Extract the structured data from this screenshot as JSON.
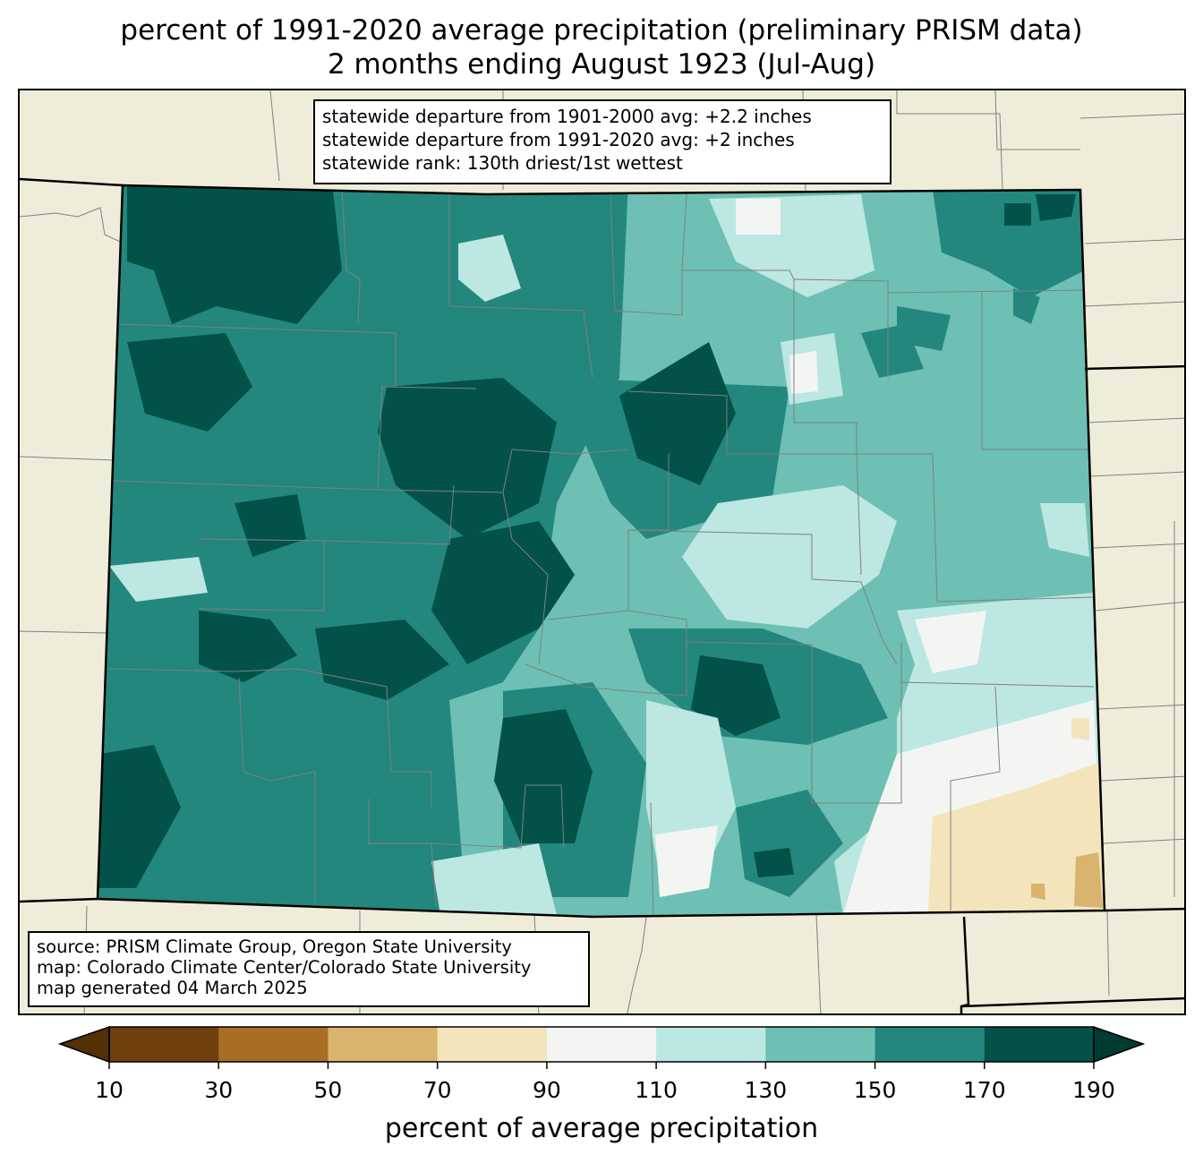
{
  "title": {
    "line1": "percent of 1991-2020 average precipitation (preliminary PRISM data)",
    "line2": "2 months ending August 1923 (Jul-Aug)"
  },
  "stats": {
    "line1": "statewide departure from 1901-2000 avg: +2.2 inches",
    "line2": "statewide departure from 1991-2020 avg: +2 inches",
    "line3": "statewide rank: 130th driest/1st wettest"
  },
  "source": {
    "line1": "source: PRISM Climate Group, Oregon State University",
    "line2": "map: Colorado Climate Center/Colorado State University",
    "line3": "map generated 04 March 2025"
  },
  "legend": {
    "label": "percent of average precipitation",
    "ticks": [
      "10",
      "30",
      "50",
      "70",
      "90",
      "110",
      "130",
      "150",
      "170",
      "190"
    ],
    "bins": [
      {
        "range": "10-30",
        "color": "#6f3f0c"
      },
      {
        "range": "30-50",
        "color": "#a96d25"
      },
      {
        "range": "50-70",
        "color": "#d8b46c"
      },
      {
        "range": "70-90",
        "color": "#f3e4bc"
      },
      {
        "range": "90-110",
        "color": "#f3f5f3"
      },
      {
        "range": "110-130",
        "color": "#bde7e2"
      },
      {
        "range": "130-150",
        "color": "#6dc0b3"
      },
      {
        "range": "150-170",
        "color": "#23877e"
      },
      {
        "range": "170-190",
        "color": "#02524a"
      }
    ],
    "under_color": "#543005",
    "over_color": "#003c30"
  },
  "map": {
    "region": "Colorado",
    "background_color": "#efedd9",
    "boundary_color": "#000000",
    "county_line_color": "#808080"
  }
}
